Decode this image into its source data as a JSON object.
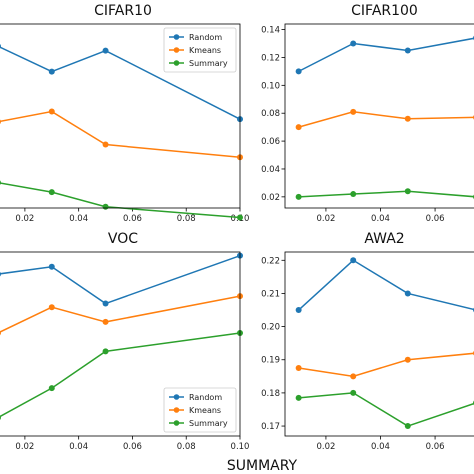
{
  "figure_title": "SUMMARY",
  "colors": {
    "Random": "#1f77b4",
    "Kmeans": "#ff7f0e",
    "Summary": "#2ca02c"
  },
  "chart_data": [
    {
      "type": "line",
      "title": "CIFAR10",
      "xlim": [
        0.01,
        0.1
      ],
      "ylim": [
        0.44,
        0.73
      ],
      "xticks": [
        0.02,
        0.04,
        0.06,
        0.08,
        0.1
      ],
      "xtick_labels": [
        "0.02",
        "0.04",
        "0.06",
        "0.08",
        "0.10"
      ],
      "yticks": [],
      "ytick_labels": [],
      "legend": "top-right",
      "x": [
        0.01,
        0.03,
        0.05,
        0.1
      ],
      "series": [
        {
          "name": "Random",
          "values": [
            0.695,
            0.655,
            0.688,
            0.58
          ]
        },
        {
          "name": "Kmeans",
          "values": [
            0.576,
            0.592,
            0.54,
            0.52
          ]
        },
        {
          "name": "Summary",
          "values": [
            0.48,
            0.465,
            0.442,
            0.425
          ]
        }
      ]
    },
    {
      "type": "line",
      "title": "CIFAR100",
      "xlim": [
        0.005,
        0.075
      ],
      "ylim": [
        0.012,
        0.144
      ],
      "xticks": [
        0.02,
        0.04,
        0.06
      ],
      "xtick_labels": [
        "0.02",
        "0.04",
        "0.06"
      ],
      "yticks": [
        0.02,
        0.04,
        0.06,
        0.08,
        0.1,
        0.12,
        0.14
      ],
      "ytick_labels": [
        "0.02",
        "0.04",
        "0.06",
        "0.08",
        "0.10",
        "0.12",
        "0.14"
      ],
      "legend": "",
      "x": [
        0.01,
        0.03,
        0.05,
        0.075
      ],
      "series": [
        {
          "name": "Random",
          "values": [
            0.11,
            0.13,
            0.125,
            0.134
          ]
        },
        {
          "name": "Kmeans",
          "values": [
            0.07,
            0.081,
            0.076,
            0.077
          ]
        },
        {
          "name": "Summary",
          "values": [
            0.02,
            0.022,
            0.024,
            0.02
          ]
        }
      ]
    },
    {
      "type": "line",
      "title": "VOC",
      "xlim": [
        0.01,
        0.1
      ],
      "ylim": [
        0.3,
        0.8
      ],
      "xticks": [
        0.02,
        0.04,
        0.06,
        0.08,
        0.1
      ],
      "xtick_labels": [
        "0.02",
        "0.04",
        "0.06",
        "0.08",
        "0.10"
      ],
      "yticks": [],
      "ytick_labels": [],
      "legend": "bottom-right",
      "x": [
        0.01,
        0.03,
        0.05,
        0.1
      ],
      "series": [
        {
          "name": "Random",
          "values": [
            0.74,
            0.76,
            0.66,
            0.79
          ]
        },
        {
          "name": "Kmeans",
          "values": [
            0.58,
            0.65,
            0.61,
            0.68
          ]
        },
        {
          "name": "Summary",
          "values": [
            0.35,
            0.43,
            0.53,
            0.58
          ]
        }
      ]
    },
    {
      "type": "line",
      "title": "AWA2",
      "xlim": [
        0.005,
        0.075
      ],
      "ylim": [
        0.167,
        0.2225
      ],
      "xticks": [
        0.02,
        0.04,
        0.06
      ],
      "xtick_labels": [
        "0.02",
        "0.04",
        "0.06"
      ],
      "yticks": [
        0.17,
        0.18,
        0.19,
        0.2,
        0.21,
        0.22
      ],
      "ytick_labels": [
        "0.17",
        "0.18",
        "0.19",
        "0.20",
        "0.21",
        "0.22"
      ],
      "legend": "",
      "x": [
        0.01,
        0.03,
        0.05,
        0.075
      ],
      "series": [
        {
          "name": "Random",
          "values": [
            0.205,
            0.22,
            0.21,
            0.205
          ]
        },
        {
          "name": "Kmeans",
          "values": [
            0.1875,
            0.185,
            0.19,
            0.192
          ]
        },
        {
          "name": "Summary",
          "values": [
            0.1785,
            0.18,
            0.17,
            0.177
          ]
        }
      ]
    }
  ]
}
